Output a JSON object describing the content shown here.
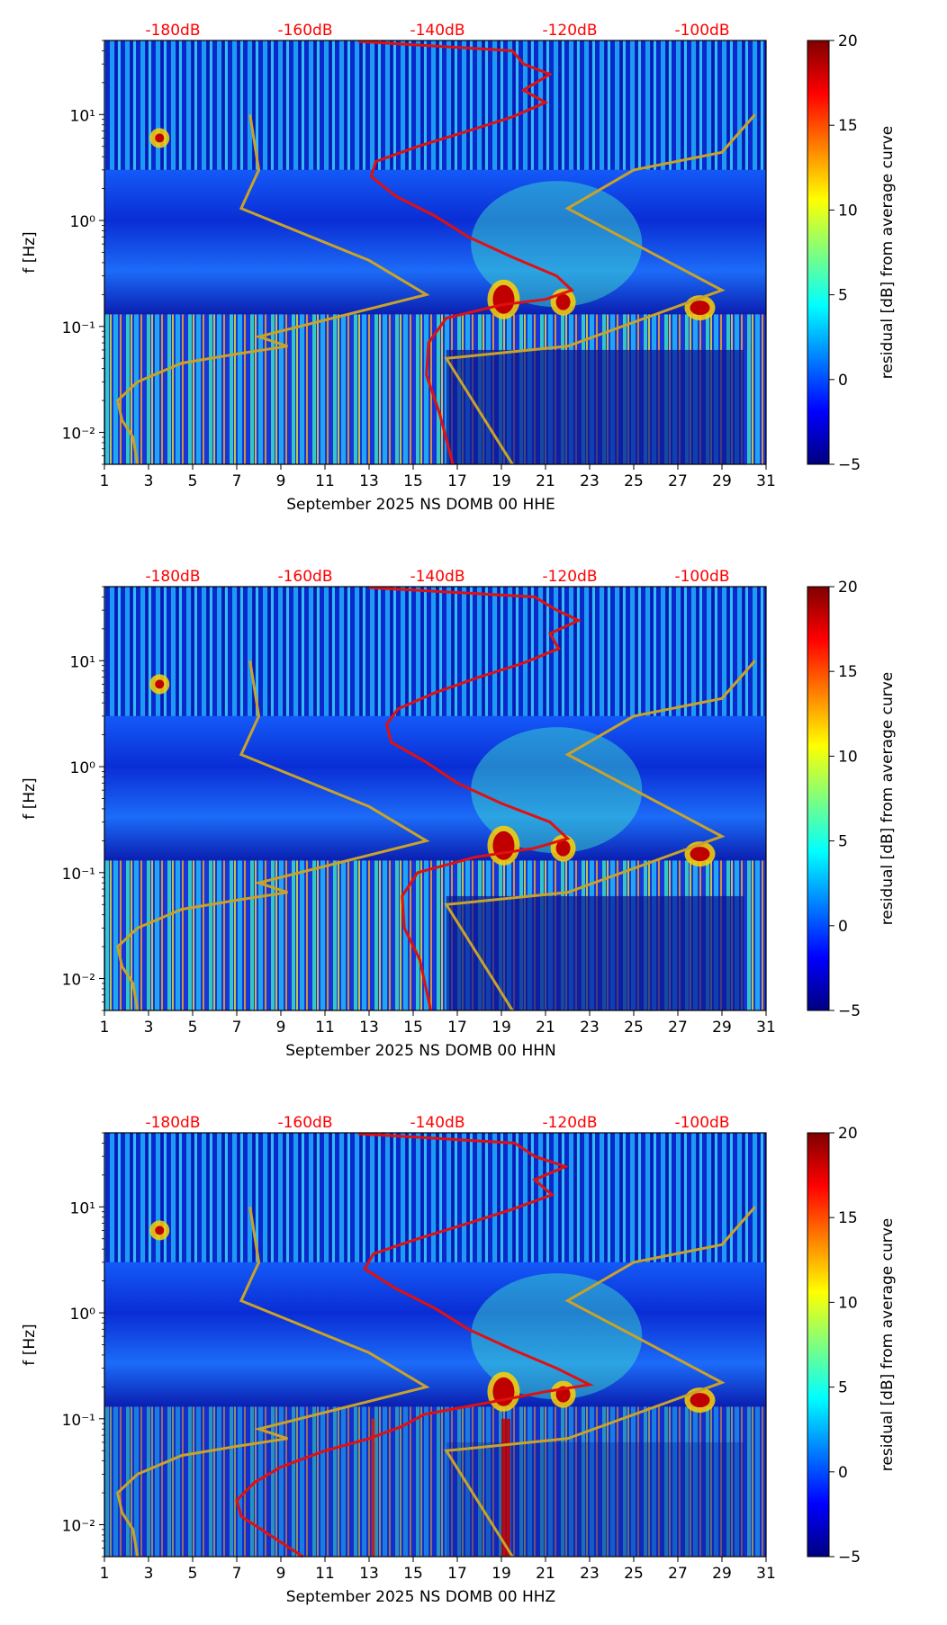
{
  "figure": {
    "colors": {
      "top_axis_text": "#ff0000",
      "psd_curve": "#e01010",
      "noise_model": "#c8a22a",
      "axis": "#000000"
    }
  },
  "chart_data": [
    {
      "type": "heatmap",
      "xlabel": "September 2025 NS DOMB 00 HHE",
      "ylabel": "f [Hz]",
      "colorbar_label": "residual [dB] from average curve",
      "x_ticks": [
        "1",
        "3",
        "5",
        "7",
        "9",
        "11",
        "13",
        "15",
        "17",
        "19",
        "21",
        "23",
        "25",
        "27",
        "29",
        "31"
      ],
      "x_range": [
        1,
        31
      ],
      "y_ticks": [
        "10⁻²",
        "10⁻¹",
        "10⁰",
        "10¹"
      ],
      "ylim": [
        0.005,
        50
      ],
      "colorbar_ticks": [
        "−5",
        "0",
        "5",
        "10",
        "15",
        "20"
      ],
      "colorbar_range": [
        -5,
        20
      ],
      "top_axis_labels": [
        "-180dB",
        "-160dB",
        "-140dB",
        "-120dB",
        "-100dB"
      ],
      "psd_curve": [
        [
          16.8,
          0.005
        ],
        [
          16.2,
          0.015
        ],
        [
          15.6,
          0.035
        ],
        [
          15.7,
          0.07
        ],
        [
          16.5,
          0.12
        ],
        [
          19.0,
          0.16
        ],
        [
          21.0,
          0.18
        ],
        [
          22.2,
          0.22
        ],
        [
          21.5,
          0.3
        ],
        [
          19.5,
          0.45
        ],
        [
          17.5,
          0.7
        ],
        [
          16.0,
          1.1
        ],
        [
          14.2,
          1.7
        ],
        [
          13.1,
          2.6
        ],
        [
          13.3,
          3.6
        ],
        [
          15.2,
          5.0
        ],
        [
          17.5,
          7.0
        ],
        [
          19.5,
          9.5
        ],
        [
          21.0,
          13.0
        ],
        [
          20.0,
          17.0
        ],
        [
          21.2,
          24.0
        ],
        [
          20.0,
          30.0
        ],
        [
          19.5,
          40.0
        ],
        [
          12.5,
          49.0
        ]
      ]
    },
    {
      "type": "heatmap",
      "xlabel": "September 2025 NS DOMB 00 HHN",
      "ylabel": "f [Hz]",
      "colorbar_label": "residual [dB] from average curve",
      "x_ticks": [
        "1",
        "3",
        "5",
        "7",
        "9",
        "11",
        "13",
        "15",
        "17",
        "19",
        "21",
        "23",
        "25",
        "27",
        "29",
        "31"
      ],
      "x_range": [
        1,
        31
      ],
      "y_ticks": [
        "10⁻²",
        "10⁻¹",
        "10⁰",
        "10¹"
      ],
      "ylim": [
        0.005,
        50
      ],
      "colorbar_ticks": [
        "−5",
        "0",
        "5",
        "10",
        "15",
        "20"
      ],
      "colorbar_range": [
        -5,
        20
      ],
      "top_axis_labels": [
        "-180dB",
        "-160dB",
        "-140dB",
        "-120dB",
        "-100dB"
      ],
      "psd_curve": [
        [
          15.8,
          0.005
        ],
        [
          15.3,
          0.015
        ],
        [
          14.6,
          0.03
        ],
        [
          14.5,
          0.06
        ],
        [
          15.2,
          0.1
        ],
        [
          17.8,
          0.14
        ],
        [
          20.5,
          0.17
        ],
        [
          22.0,
          0.21
        ],
        [
          21.2,
          0.3
        ],
        [
          19.0,
          0.45
        ],
        [
          17.0,
          0.7
        ],
        [
          15.6,
          1.1
        ],
        [
          14.0,
          1.7
        ],
        [
          13.8,
          2.5
        ],
        [
          14.3,
          3.5
        ],
        [
          16.0,
          5.0
        ],
        [
          18.0,
          7.0
        ],
        [
          20.0,
          9.5
        ],
        [
          21.6,
          13.0
        ],
        [
          21.2,
          18.0
        ],
        [
          22.5,
          24.0
        ],
        [
          21.5,
          30.0
        ],
        [
          20.5,
          40.0
        ],
        [
          13.0,
          49.0
        ]
      ]
    },
    {
      "type": "heatmap",
      "xlabel": "September 2025 NS DOMB 00 HHZ",
      "ylabel": "f [Hz]",
      "colorbar_label": "residual [dB] from average curve",
      "x_ticks": [
        "1",
        "3",
        "5",
        "7",
        "9",
        "11",
        "13",
        "15",
        "17",
        "19",
        "21",
        "23",
        "25",
        "27",
        "29",
        "31"
      ],
      "x_range": [
        1,
        31
      ],
      "y_ticks": [
        "10⁻²",
        "10⁻¹",
        "10⁰",
        "10¹"
      ],
      "ylim": [
        0.005,
        50
      ],
      "colorbar_ticks": [
        "−5",
        "0",
        "5",
        "10",
        "15",
        "20"
      ],
      "colorbar_range": [
        -5,
        20
      ],
      "top_axis_labels": [
        "-180dB",
        "-160dB",
        "-140dB",
        "-120dB",
        "-100dB"
      ],
      "psd_curve": [
        [
          10.0,
          0.005
        ],
        [
          8.5,
          0.008
        ],
        [
          7.2,
          0.012
        ],
        [
          7.0,
          0.017
        ],
        [
          7.8,
          0.025
        ],
        [
          9.0,
          0.035
        ],
        [
          11.0,
          0.05
        ],
        [
          13.0,
          0.065
        ],
        [
          14.5,
          0.085
        ],
        [
          15.5,
          0.11
        ],
        [
          19.0,
          0.15
        ],
        [
          21.0,
          0.18
        ],
        [
          23.0,
          0.21
        ],
        [
          21.5,
          0.3
        ],
        [
          19.5,
          0.45
        ],
        [
          17.5,
          0.7
        ],
        [
          16.0,
          1.1
        ],
        [
          14.2,
          1.7
        ],
        [
          12.8,
          2.6
        ],
        [
          13.2,
          3.6
        ],
        [
          15.2,
          5.0
        ],
        [
          17.5,
          7.0
        ],
        [
          19.5,
          9.5
        ],
        [
          21.3,
          13.0
        ],
        [
          20.5,
          18.0
        ],
        [
          21.9,
          24.0
        ],
        [
          20.5,
          30.0
        ],
        [
          19.6,
          40.0
        ],
        [
          12.5,
          49.0
        ]
      ]
    }
  ],
  "noise_models": {
    "low_model": [
      [
        2.5,
        0.005
      ],
      [
        2.3,
        0.009
      ],
      [
        1.8,
        0.013
      ],
      [
        1.6,
        0.02
      ],
      [
        2.5,
        0.03
      ],
      [
        4.5,
        0.045
      ],
      [
        7.0,
        0.055
      ],
      [
        9.3,
        0.065
      ],
      [
        8.0,
        0.08
      ],
      [
        15.6,
        0.2
      ],
      [
        13.0,
        0.42
      ],
      [
        7.2,
        1.3
      ],
      [
        8.0,
        3.0
      ],
      [
        7.6,
        10.0
      ]
    ],
    "high_model": [
      [
        19.5,
        0.005
      ],
      [
        16.5,
        0.05
      ],
      [
        22.0,
        0.065
      ],
      [
        29.0,
        0.22
      ],
      [
        22.0,
        1.3
      ],
      [
        25.0,
        3.0
      ],
      [
        29.0,
        4.4
      ],
      [
        30.5,
        10.0
      ]
    ]
  }
}
